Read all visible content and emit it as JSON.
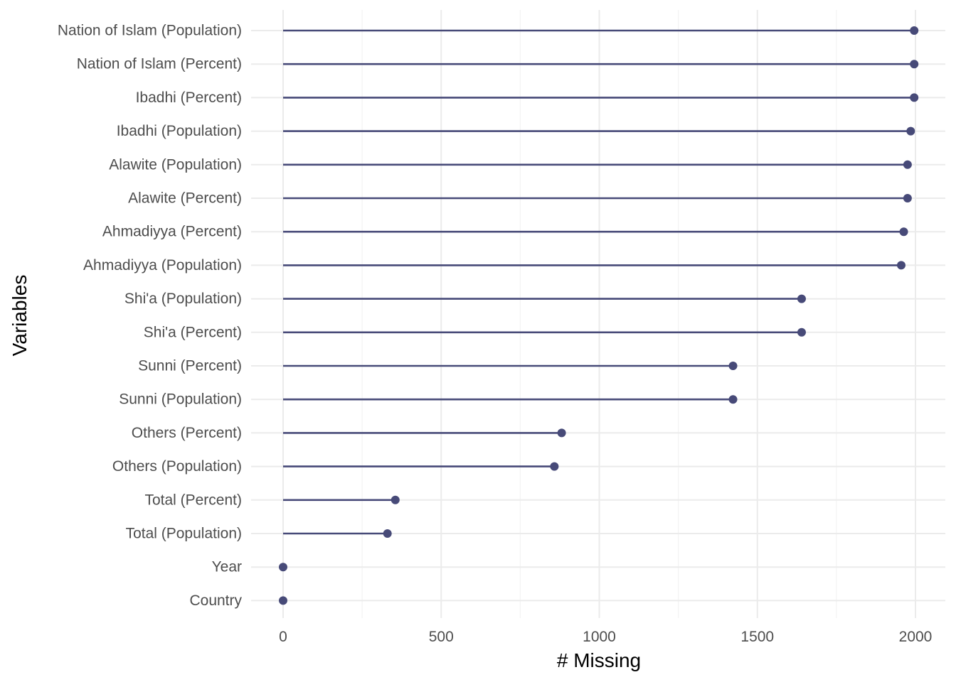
{
  "chart_data": {
    "type": "lollipop",
    "xlabel": "# Missing",
    "ylabel": "Variables",
    "xlim": [
      -100,
      2080
    ],
    "x_ticks": [
      0,
      500,
      1000,
      1500,
      2000
    ],
    "x_tick_labels": [
      "0",
      "500",
      "1000",
      "1500",
      "2000"
    ],
    "grid": true,
    "color": "#474a78",
    "categories": [
      "Nation of Islam (Population)",
      "Nation of Islam (Percent)",
      "Ibadhi (Percent)",
      "Ibadhi (Population)",
      "Alawite (Population)",
      "Alawite (Percent)",
      "Ahmadiyya (Percent)",
      "Ahmadiyya (Population)",
      "Shi'a (Population)",
      "Shi'a (Percent)",
      "Sunni (Percent)",
      "Sunni (Population)",
      "Others (Percent)",
      "Others (Population)",
      "Total (Percent)",
      "Total (Population)",
      "Year",
      "Country"
    ],
    "values": [
      1996,
      1996,
      1996,
      1985,
      1975,
      1975,
      1963,
      1955,
      1640,
      1640,
      1423,
      1423,
      881,
      858,
      355,
      330,
      0,
      0
    ]
  }
}
